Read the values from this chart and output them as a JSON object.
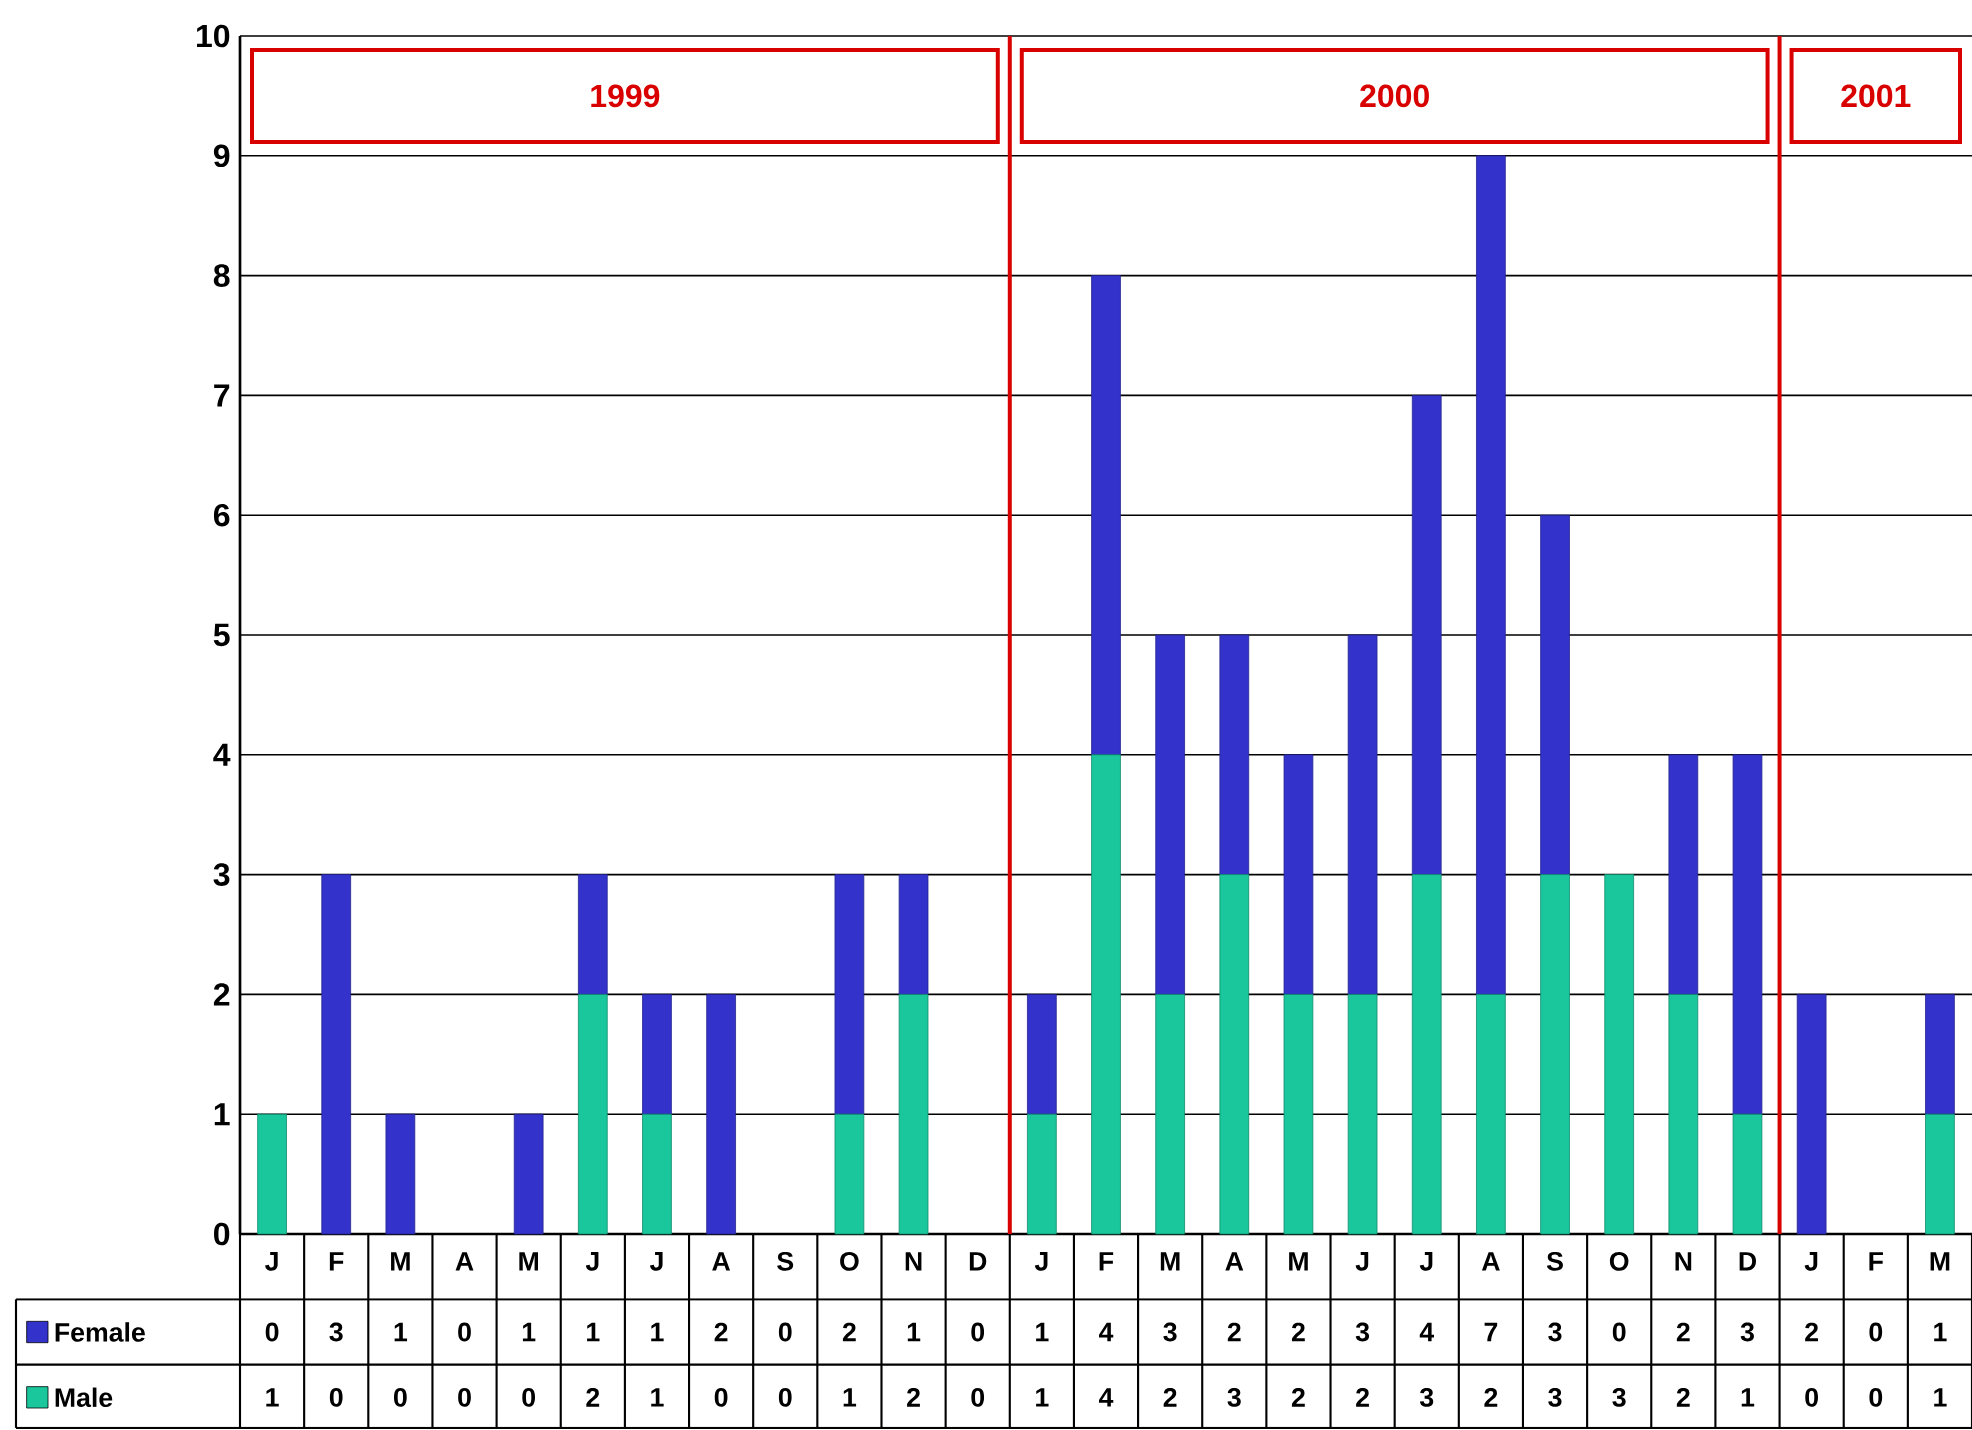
{
  "chart_data": {
    "type": "bar",
    "stacked": true,
    "categories": [
      "J",
      "F",
      "M",
      "A",
      "M",
      "J",
      "J",
      "A",
      "S",
      "O",
      "N",
      "D",
      "J",
      "F",
      "M",
      "A",
      "M",
      "J",
      "J",
      "A",
      "S",
      "O",
      "N",
      "D",
      "J",
      "F",
      "M"
    ],
    "series": [
      {
        "name": "Male",
        "color": "#1ac79c",
        "values": [
          1,
          0,
          0,
          0,
          0,
          2,
          1,
          0,
          0,
          1,
          2,
          0,
          1,
          4,
          2,
          3,
          2,
          2,
          3,
          2,
          3,
          3,
          2,
          1,
          0,
          0,
          1
        ]
      },
      {
        "name": "Female",
        "color": "#3333cc",
        "values": [
          0,
          3,
          1,
          0,
          1,
          1,
          1,
          2,
          0,
          2,
          1,
          0,
          1,
          4,
          3,
          2,
          2,
          3,
          4,
          7,
          3,
          0,
          2,
          3,
          2,
          0,
          1
        ]
      }
    ],
    "ylim": [
      0,
      10
    ],
    "yticks": [
      0,
      1,
      2,
      3,
      4,
      5,
      6,
      7,
      8,
      9,
      10
    ],
    "grid": "y",
    "legend": "bottom",
    "data_labels": true,
    "annotations": [
      "1999",
      "2000",
      "2001"
    ]
  }
}
